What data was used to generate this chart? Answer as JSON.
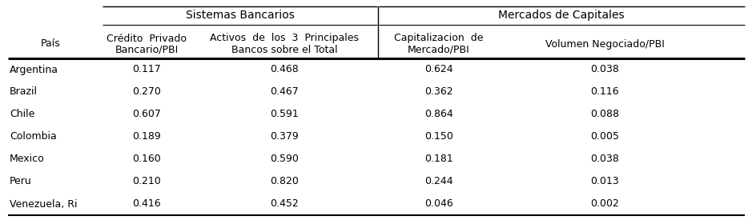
{
  "countries": [
    "Argentina",
    "Brazil",
    "Chile",
    "Colombia",
    "Mexico",
    "Peru",
    "Venezuela, Ri"
  ],
  "col1_values": [
    "0.117",
    "0.270",
    "0.607",
    "0.189",
    "0.160",
    "0.210",
    "0.416"
  ],
  "col2_values": [
    "0.468",
    "0.467",
    "0.591",
    "0.379",
    "0.590",
    "0.820",
    "0.452"
  ],
  "col3_values": [
    "0.624",
    "0.362",
    "0.864",
    "0.150",
    "0.181",
    "0.244",
    "0.046"
  ],
  "col4_values": [
    "0.038",
    "0.116",
    "0.088",
    "0.005",
    "0.038",
    "0.013",
    "0.002"
  ],
  "header1_main": "Sistemas Bancarios",
  "header2_main": "Mercados de Capitales",
  "col_header0": "País",
  "col_header1_line1": "Crédito  Privado",
  "col_header1_line2": "Bancario/PBI",
  "col_header2_line1": "Activos  de  los  3  Principales",
  "col_header2_line2": "Bancos sobre el Total",
  "col_header3_line1": "Capitalizacion  de",
  "col_header3_line2": "Mercado/PBI",
  "col_header4": "Volumen Negociado/PBI",
  "bg_color": "#ffffff",
  "text_color": "#000000",
  "font_size": 9.0,
  "header_font_size": 10.0,
  "fig_width": 9.44,
  "fig_height": 2.8,
  "dpi": 100
}
